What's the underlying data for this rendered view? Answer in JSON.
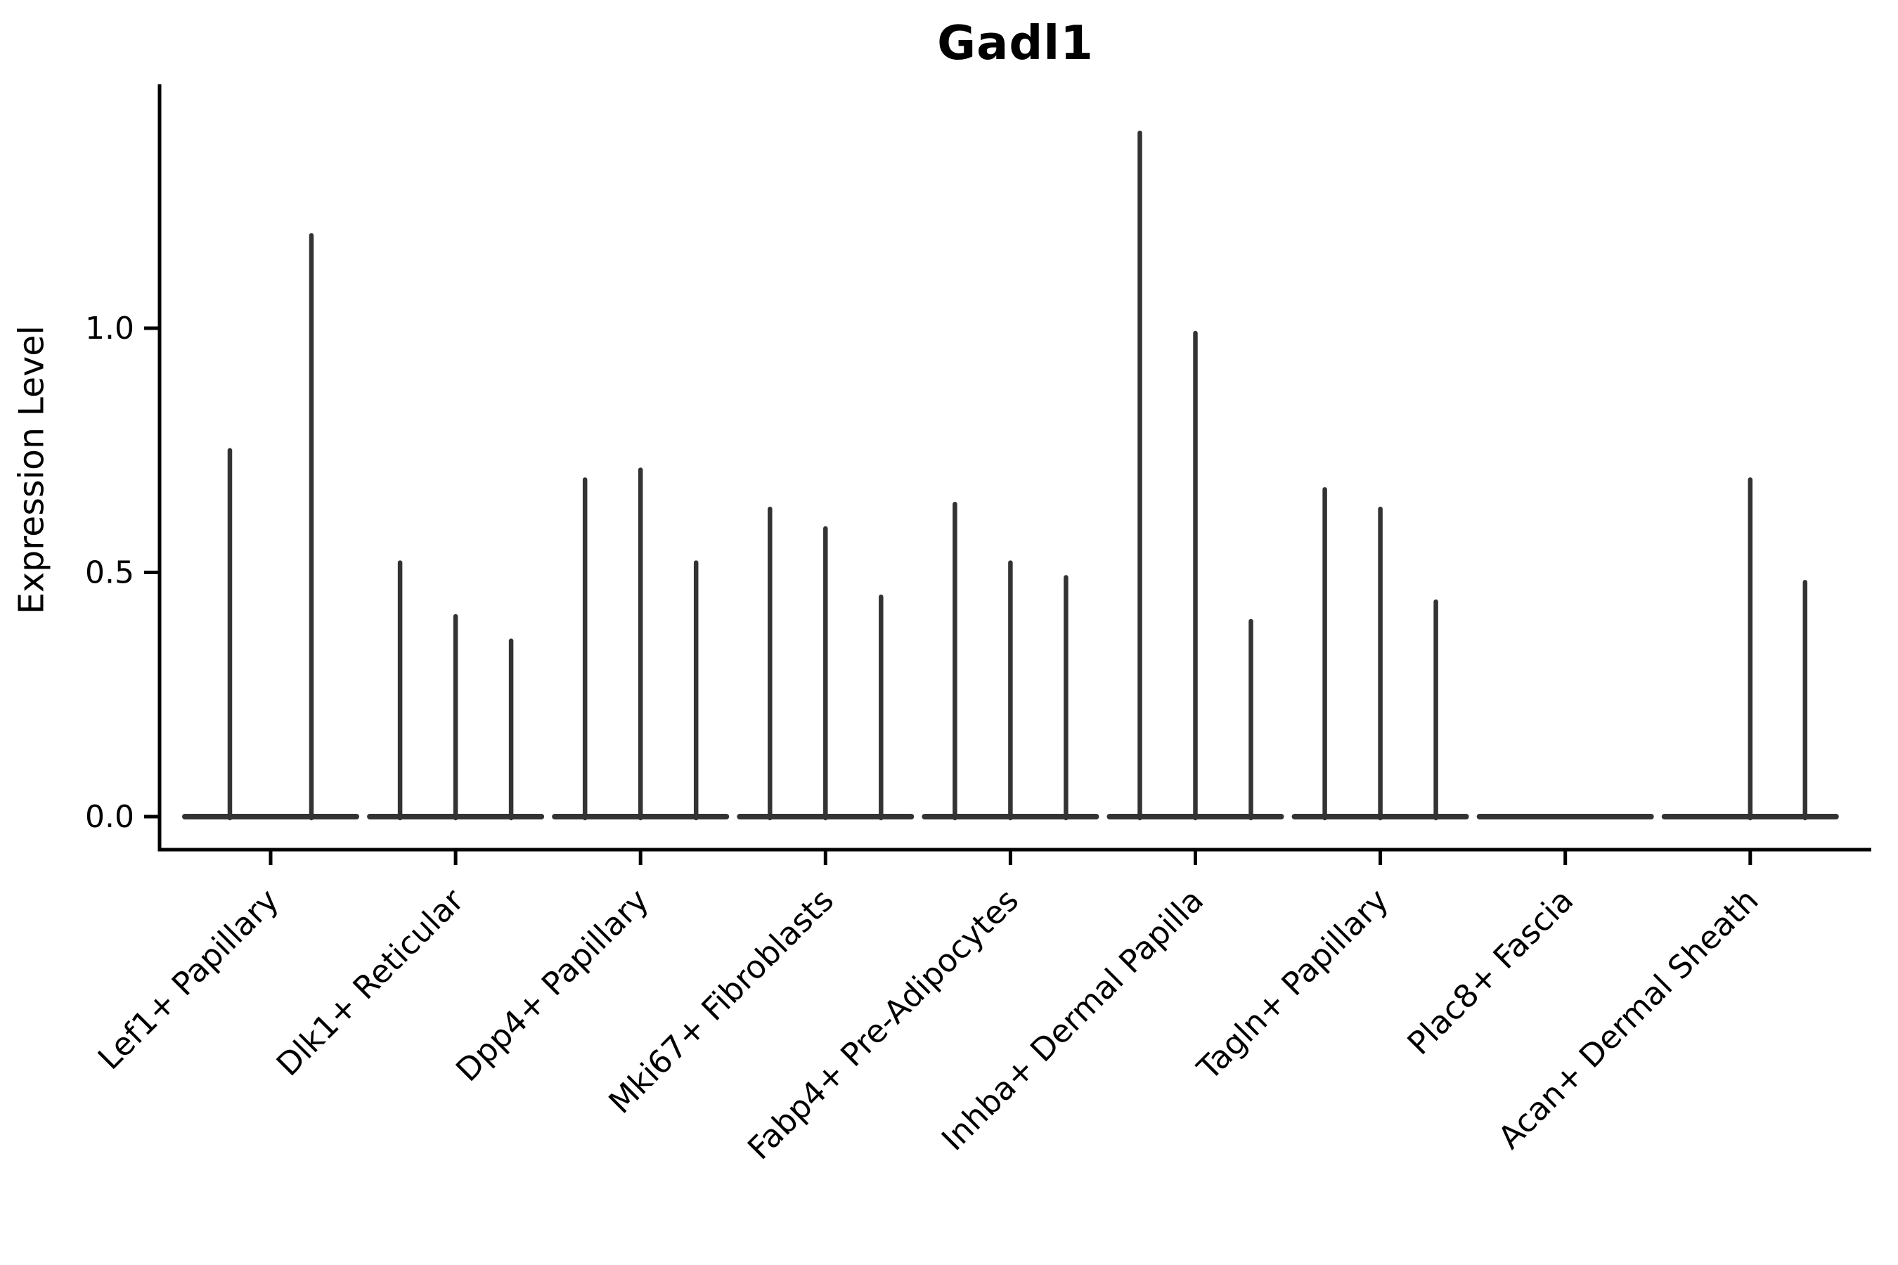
{
  "title": "Gadl1",
  "ylabel": "Expression Level",
  "chart_data": {
    "type": "violin",
    "title": "Gadl1",
    "xlabel": "",
    "ylabel": "Expression Level",
    "ylim": [
      -0.07,
      1.5
    ],
    "yticks": [
      0.0,
      0.5,
      1.0
    ],
    "ytick_labels": [
      "0.0",
      "0.5",
      "1.0"
    ],
    "grid": false,
    "legend": false,
    "categories": [
      "Lef1+ Papillary",
      "Dlk1+ Reticular",
      "Dpp4+ Papillary",
      "Mki67+ Fibroblasts",
      "Fabp4+ Pre-Adipocytes",
      "Inhba+ Dermal Papilla",
      "Tagln+ Papillary",
      "Plac8+ Fascia",
      "Acan+ Dermal Sheath"
    ],
    "groups": [
      {
        "category": "Lef1+ Papillary",
        "violins": [
          {
            "offset": -58,
            "max": 0.75
          },
          {
            "offset": 58,
            "max": 1.19
          }
        ]
      },
      {
        "category": "Dlk1+ Reticular",
        "violins": [
          {
            "offset": -79,
            "max": 0.52
          },
          {
            "offset": 0,
            "max": 0.41
          },
          {
            "offset": 79,
            "max": 0.36
          }
        ]
      },
      {
        "category": "Dpp4+ Papillary",
        "violins": [
          {
            "offset": -79,
            "max": 0.69
          },
          {
            "offset": 0,
            "max": 0.71
          },
          {
            "offset": 79,
            "max": 0.52
          }
        ]
      },
      {
        "category": "Mki67+ Fibroblasts",
        "violins": [
          {
            "offset": -79,
            "max": 0.63
          },
          {
            "offset": 0,
            "max": 0.59
          },
          {
            "offset": 79,
            "max": 0.45
          }
        ]
      },
      {
        "category": "Fabp4+ Pre-Adipocytes",
        "violins": [
          {
            "offset": -79,
            "max": 0.64
          },
          {
            "offset": 0,
            "max": 0.52
          },
          {
            "offset": 79,
            "max": 0.49
          }
        ]
      },
      {
        "category": "Inhba+ Dermal Papilla",
        "violins": [
          {
            "offset": -79,
            "max": 1.4
          },
          {
            "offset": 0,
            "max": 0.99
          },
          {
            "offset": 79,
            "max": 0.4
          }
        ]
      },
      {
        "category": "Tagln+ Papillary",
        "violins": [
          {
            "offset": -79,
            "max": 0.67
          },
          {
            "offset": 0,
            "max": 0.63
          },
          {
            "offset": 79,
            "max": 0.44
          }
        ]
      },
      {
        "category": "Plac8+ Fascia",
        "violins": []
      },
      {
        "category": "Acan+ Dermal Sheath",
        "violins": [
          {
            "offset": 0,
            "max": 0.69
          },
          {
            "offset": 78,
            "max": 0.48
          }
        ]
      }
    ],
    "violin_style": "all mass at zero with thin density spike up to max expression"
  },
  "colors": {
    "background": "#ffffff",
    "axis": "#000000",
    "text": "#000000",
    "violin_stroke": "#333333"
  }
}
